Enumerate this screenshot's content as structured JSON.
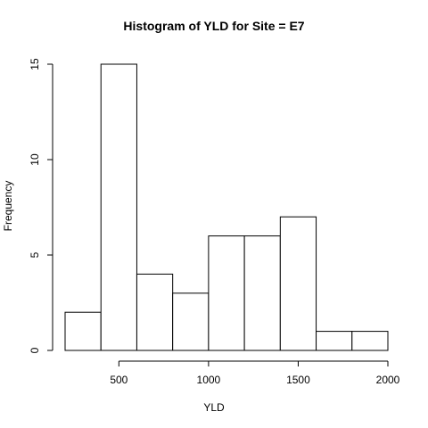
{
  "chart_data": {
    "type": "bar",
    "title": "Histogram of YLD for Site = E7",
    "xlabel": "YLD",
    "ylabel": "Frequency",
    "bins": [
      {
        "from": 200,
        "to": 400,
        "count": 2
      },
      {
        "from": 400,
        "to": 600,
        "count": 15
      },
      {
        "from": 600,
        "to": 800,
        "count": 4
      },
      {
        "from": 800,
        "to": 1000,
        "count": 3
      },
      {
        "from": 1000,
        "to": 1200,
        "count": 6
      },
      {
        "from": 1200,
        "to": 1400,
        "count": 6
      },
      {
        "from": 1400,
        "to": 1600,
        "count": 7
      },
      {
        "from": 1600,
        "to": 1800,
        "count": 1
      },
      {
        "from": 1800,
        "to": 2000,
        "count": 1
      }
    ],
    "xticks": [
      500,
      1000,
      1500,
      2000
    ],
    "yticks": [
      0,
      5,
      10,
      15
    ],
    "xlim": [
      200,
      2000
    ],
    "ylim": [
      0,
      15
    ],
    "grid": false,
    "colors": {
      "fill": "#ffffff",
      "stroke": "#000000"
    }
  }
}
